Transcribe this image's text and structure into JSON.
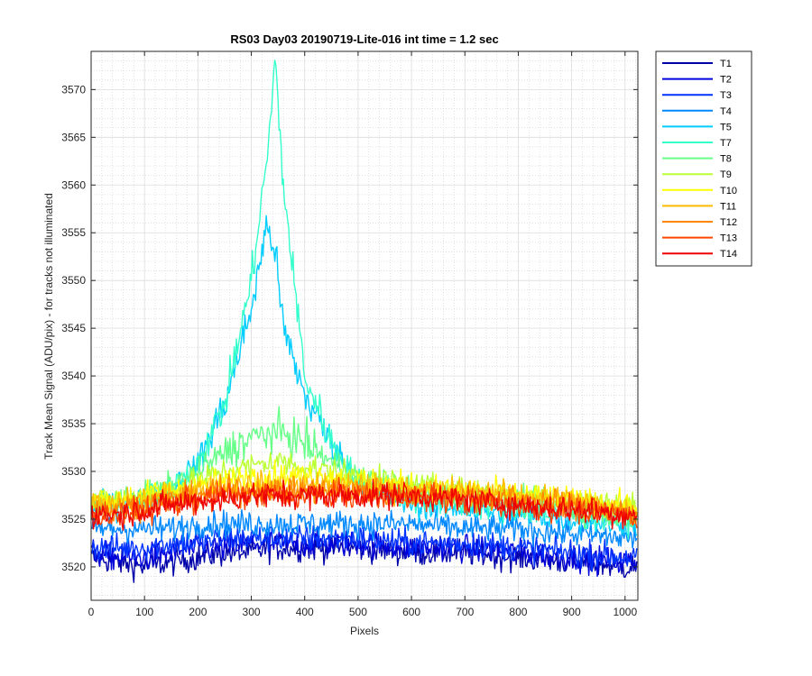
{
  "chart_data": {
    "type": "line",
    "title": "RS03 Day03 20190719-Lite-016 int time = 1.2 sec",
    "xlabel": "Pixels",
    "ylabel": "Track Mean Signal (ADU/pix) - for tracks not illuminated",
    "xlim": [
      0,
      1024
    ],
    "ylim": [
      3516.5,
      3574
    ],
    "x_ticks": [
      0,
      100,
      200,
      300,
      400,
      500,
      600,
      700,
      800,
      900,
      1000
    ],
    "y_ticks": [
      3520,
      3525,
      3530,
      3535,
      3540,
      3545,
      3550,
      3555,
      3560,
      3565,
      3570
    ],
    "x_tick_labels": [
      "0",
      "100",
      "200",
      "300",
      "400",
      "500",
      "600",
      "700",
      "800",
      "900",
      "1000"
    ],
    "y_tick_labels": [
      "3520",
      "3525",
      "3530",
      "3535",
      "3540",
      "3545",
      "3550",
      "3555",
      "3560",
      "3565",
      "3570"
    ],
    "grid": true,
    "minor_grid": true,
    "legend_position": "outside-top-right",
    "sample_x": [
      0,
      50,
      100,
      150,
      200,
      250,
      300,
      330,
      345,
      360,
      400,
      450,
      500,
      600,
      700,
      800,
      900,
      1000,
      1023
    ],
    "series": [
      {
        "name": "T1",
        "color": "#0000aa",
        "values": [
          3521,
          3520.5,
          3520,
          3520.5,
          3521,
          3521.5,
          3521.5,
          3522,
          3522,
          3522,
          3522,
          3522,
          3522,
          3521.5,
          3521.5,
          3521,
          3520.5,
          3520,
          3520
        ]
      },
      {
        "name": "T2",
        "color": "#0000dd",
        "values": [
          3521.5,
          3521,
          3521,
          3521.5,
          3522,
          3522,
          3522.5,
          3522.5,
          3522.5,
          3522.5,
          3522.5,
          3522.5,
          3522.5,
          3522,
          3522,
          3521.5,
          3521,
          3520.5,
          3520.5
        ]
      },
      {
        "name": "T3",
        "color": "#0033ff",
        "values": [
          3522,
          3522,
          3522,
          3522.5,
          3522.5,
          3523,
          3523,
          3523,
          3523,
          3523,
          3523,
          3523,
          3523,
          3522.5,
          3522.5,
          3522,
          3521.5,
          3521,
          3521
        ]
      },
      {
        "name": "T4",
        "color": "#0088ff",
        "values": [
          3524,
          3524,
          3524,
          3524,
          3524.5,
          3524.5,
          3524.5,
          3524.5,
          3524.5,
          3524.5,
          3524.5,
          3524.5,
          3524.5,
          3524.5,
          3524,
          3524,
          3523.5,
          3523,
          3523
        ]
      },
      {
        "name": "T5",
        "color": "#00ccff",
        "values": [
          3526,
          3526.5,
          3527,
          3528,
          3531,
          3537,
          3547,
          3556,
          3553,
          3545,
          3538,
          3533,
          3529,
          3526.5,
          3526,
          3525.5,
          3525,
          3524.5,
          3524.5
        ]
      },
      {
        "name": "T7",
        "color": "#33ffcc",
        "values": [
          3526,
          3526.5,
          3527,
          3528,
          3531,
          3537,
          3550,
          3563,
          3573,
          3560,
          3540,
          3533,
          3529,
          3527,
          3526.5,
          3526,
          3525.5,
          3525,
          3525
        ]
      },
      {
        "name": "T8",
        "color": "#66ff88",
        "values": [
          3526.5,
          3527,
          3527.5,
          3528.5,
          3530,
          3532,
          3533.5,
          3534,
          3534,
          3534,
          3533,
          3531,
          3529.5,
          3528,
          3527.5,
          3527,
          3526,
          3525.5,
          3525.5
        ]
      },
      {
        "name": "T9",
        "color": "#bbff33",
        "values": [
          3527,
          3527,
          3527.5,
          3528,
          3529,
          3530,
          3530.5,
          3531,
          3531,
          3531,
          3530.5,
          3530,
          3529.5,
          3528.5,
          3528,
          3527.5,
          3527,
          3526.5,
          3526.5
        ]
      },
      {
        "name": "T10",
        "color": "#ffff00",
        "values": [
          3527,
          3527,
          3527.5,
          3528,
          3528.5,
          3529,
          3529.5,
          3529.5,
          3529.5,
          3529.5,
          3529.5,
          3529.5,
          3529,
          3528.5,
          3528,
          3527.5,
          3527,
          3526.5,
          3526
        ]
      },
      {
        "name": "T11",
        "color": "#ffbb00",
        "values": [
          3526.5,
          3526.5,
          3527,
          3527.5,
          3528,
          3528.5,
          3528.5,
          3528.5,
          3528.5,
          3528.5,
          3528.5,
          3528.5,
          3528.5,
          3528,
          3528,
          3527.5,
          3527,
          3526,
          3525.5
        ]
      },
      {
        "name": "T12",
        "color": "#ff8800",
        "values": [
          3526,
          3526,
          3526.5,
          3527,
          3527.5,
          3528,
          3528,
          3528,
          3528,
          3528,
          3528,
          3528,
          3528,
          3527.5,
          3527.5,
          3527,
          3526.5,
          3525.5,
          3525
        ]
      },
      {
        "name": "T13",
        "color": "#ff4400",
        "values": [
          3525.5,
          3525.5,
          3526,
          3526.5,
          3527,
          3527.5,
          3527.5,
          3527.5,
          3527.5,
          3527.5,
          3527.5,
          3527.5,
          3527.5,
          3527.5,
          3527,
          3526.5,
          3526,
          3525.5,
          3525
        ]
      },
      {
        "name": "T14",
        "color": "#ee0000",
        "values": [
          3525.5,
          3525.5,
          3526,
          3526.5,
          3527,
          3527,
          3527.5,
          3527.5,
          3527.5,
          3527.5,
          3527.5,
          3527.5,
          3527.5,
          3527.5,
          3527,
          3526.5,
          3526,
          3525.5,
          3525.5
        ]
      }
    ]
  }
}
